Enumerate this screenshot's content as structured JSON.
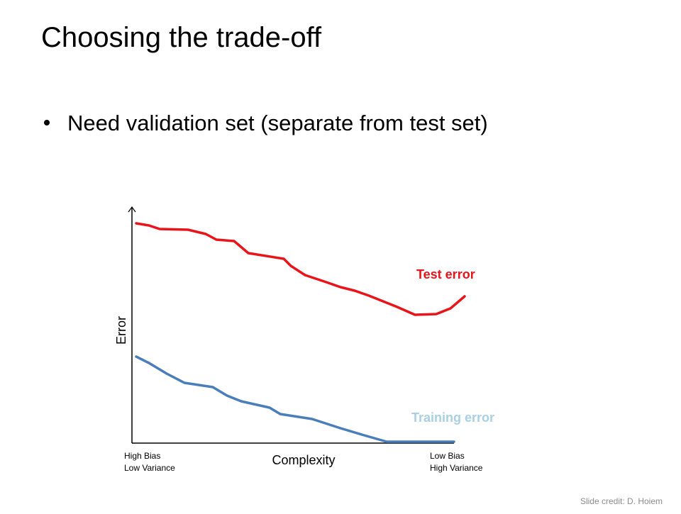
{
  "title": "Choosing the trade-off",
  "bullets": [
    "Need validation set (separate from test set)"
  ],
  "figure": {
    "y_label": "Error",
    "x_label": "Complexity",
    "left_note": [
      "High Bias",
      "Low Variance"
    ],
    "right_note": [
      "Low Bias",
      "High Variance"
    ],
    "test_label": "Test error",
    "training_label": "Training error"
  },
  "credit": "Slide credit: D. Hoiem"
}
